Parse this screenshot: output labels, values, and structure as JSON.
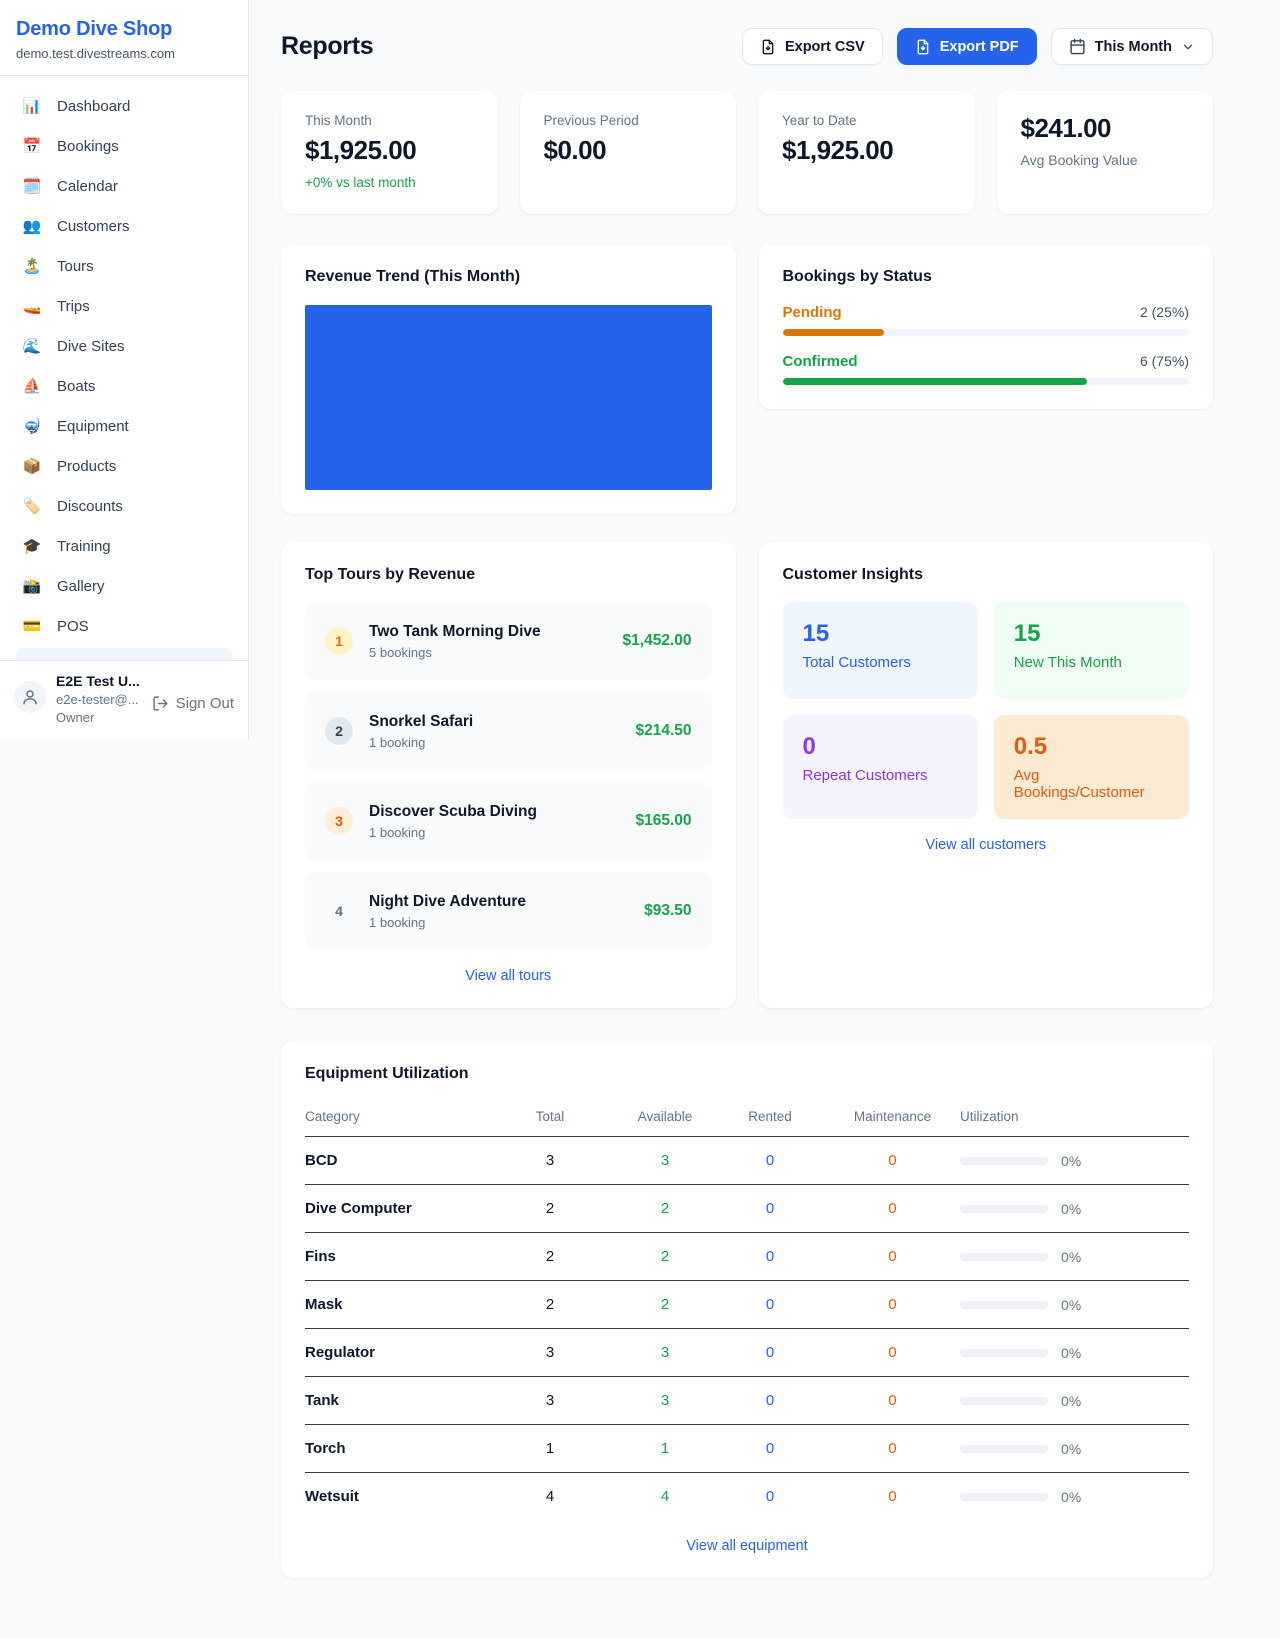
{
  "colors": {
    "accent": "#2563eb",
    "green": "#16a34a",
    "orange": "#d97706",
    "orange_deep": "#ea580c",
    "purple": "#9333ea",
    "chart_fill": "#2563eb"
  },
  "sidebar": {
    "brand": {
      "name": "Demo Dive Shop",
      "domain": "demo.test.divestreams.com"
    },
    "nav": [
      {
        "icon": "📊",
        "label": "Dashboard"
      },
      {
        "icon": "📅",
        "label": "Bookings"
      },
      {
        "icon": "🗓️",
        "label": "Calendar"
      },
      {
        "icon": "👥",
        "label": "Customers"
      },
      {
        "icon": "🏝️",
        "label": "Tours"
      },
      {
        "icon": "🚤",
        "label": "Trips"
      },
      {
        "icon": "🌊",
        "label": "Dive Sites"
      },
      {
        "icon": "⛵",
        "label": "Boats"
      },
      {
        "icon": "🤿",
        "label": "Equipment"
      },
      {
        "icon": "📦",
        "label": "Products"
      },
      {
        "icon": "🏷️",
        "label": "Discounts"
      },
      {
        "icon": "🎓",
        "label": "Training"
      },
      {
        "icon": "📸",
        "label": "Gallery"
      },
      {
        "icon": "💳",
        "label": "POS"
      }
    ],
    "user": {
      "name": "E2E Test U...",
      "email": "e2e-tester@...",
      "role": "Owner",
      "sign_out": "Sign Out"
    }
  },
  "header": {
    "title": "Reports",
    "export_csv": "Export CSV",
    "export_pdf": "Export PDF",
    "period": "This Month"
  },
  "stats": [
    {
      "label": "This Month",
      "value": "$1,925.00",
      "note": "+0% vs last month"
    },
    {
      "label": "Previous Period",
      "value": "$0.00"
    },
    {
      "label": "Year to Date",
      "value": "$1,925.00"
    },
    {
      "label": "Avg Booking Value",
      "value": "$241.00"
    }
  ],
  "revenue_trend": {
    "title": "Revenue Trend (This Month)"
  },
  "bookings_by_status": {
    "title": "Bookings by Status",
    "rows": [
      {
        "label": "Pending",
        "value": "2 (25%)",
        "pct": 25
      },
      {
        "label": "Confirmed",
        "value": "6 (75%)",
        "pct": 75
      }
    ]
  },
  "top_tours": {
    "title": "Top Tours by Revenue",
    "rows": [
      {
        "rank": "1",
        "name": "Two Tank Morning Dive",
        "bookings": "5 bookings",
        "revenue": "$1,452.00"
      },
      {
        "rank": "2",
        "name": "Snorkel Safari",
        "bookings": "1 booking",
        "revenue": "$214.50"
      },
      {
        "rank": "3",
        "name": "Discover Scuba Diving",
        "bookings": "1 booking",
        "revenue": "$165.00"
      },
      {
        "rank": "4",
        "name": "Night Dive Adventure",
        "bookings": "1 booking",
        "revenue": "$93.50"
      }
    ],
    "link": "View all tours"
  },
  "customer_insights": {
    "title": "Customer Insights",
    "tiles": [
      {
        "value": "15",
        "label": "Total Customers"
      },
      {
        "value": "15",
        "label": "New This Month"
      },
      {
        "value": "0",
        "label": "Repeat Customers"
      },
      {
        "value": "0.5",
        "label": "Avg Bookings/Customer"
      }
    ],
    "link": "View all customers"
  },
  "equipment": {
    "title": "Equipment Utilization",
    "columns": [
      "Category",
      "Total",
      "Available",
      "Rented",
      "Maintenance",
      "Utilization"
    ],
    "rows": [
      {
        "category": "BCD",
        "total": "3",
        "available": "3",
        "rented": "0",
        "maintenance": "0",
        "utilization": "0%"
      },
      {
        "category": "Dive Computer",
        "total": "2",
        "available": "2",
        "rented": "0",
        "maintenance": "0",
        "utilization": "0%"
      },
      {
        "category": "Fins",
        "total": "2",
        "available": "2",
        "rented": "0",
        "maintenance": "0",
        "utilization": "0%"
      },
      {
        "category": "Mask",
        "total": "2",
        "available": "2",
        "rented": "0",
        "maintenance": "0",
        "utilization": "0%"
      },
      {
        "category": "Regulator",
        "total": "3",
        "available": "3",
        "rented": "0",
        "maintenance": "0",
        "utilization": "0%"
      },
      {
        "category": "Tank",
        "total": "3",
        "available": "3",
        "rented": "0",
        "maintenance": "0",
        "utilization": "0%"
      },
      {
        "category": "Torch",
        "total": "1",
        "available": "1",
        "rented": "0",
        "maintenance": "0",
        "utilization": "0%"
      },
      {
        "category": "Wetsuit",
        "total": "4",
        "available": "4",
        "rented": "0",
        "maintenance": "0",
        "utilization": "0%"
      }
    ],
    "link": "View all equipment"
  }
}
